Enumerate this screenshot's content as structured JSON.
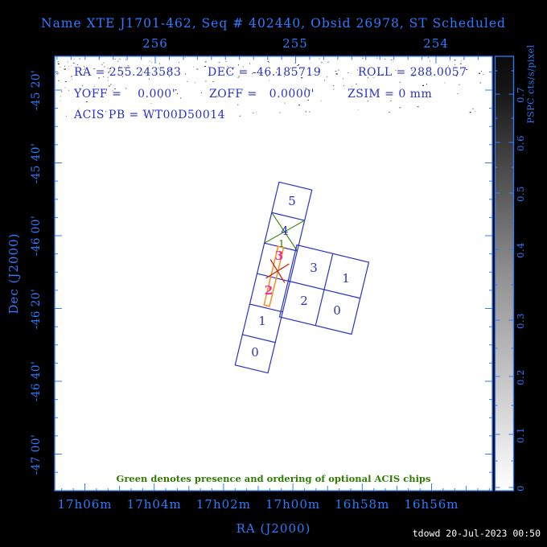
{
  "title": "Name XTE J1701-462, Seq # 402440, Obsid 26978, ST Scheduled",
  "pointing": {
    "ra": "RA = 255.243583",
    "dec": "DEC = -46.185719",
    "roll": "ROLL = 288.0057",
    "yoff": "YOFF =    0.000'",
    "zoff": "ZOFF =   0.0000'",
    "zsim": "ZSIM = 0 mm",
    "acis_pb": "ACIS PB = WT00D50014"
  },
  "axes": {
    "top_ticks": [
      "256",
      "255",
      "254"
    ],
    "bottom_label": "RA (J2000)",
    "bottom_ticks": [
      "17h06m",
      "17h04m",
      "17h02m",
      "17h00m",
      "16h58m",
      "16h56m"
    ],
    "left_label": "Dec (J2000)",
    "left_ticks": [
      "-45 20'",
      "-45 40'",
      "-46 00'",
      "-46 20'",
      "-46 40'",
      "-47 00'"
    ]
  },
  "colorbar": {
    "label": "PSPC cts/s/pixel",
    "ticks": [
      "0.7",
      "0.6",
      "0.5",
      "0.4",
      "0.3",
      "0.2",
      "0.1",
      "0"
    ]
  },
  "acis": {
    "s_array_labels": [
      "5",
      "4",
      "3",
      "2",
      "1",
      "0"
    ],
    "optional_chip_order": "1",
    "i_array_labels": [
      "3",
      "1",
      "2",
      "0"
    ]
  },
  "footnote": "Green denotes presence and ordering of optional ACIS chips",
  "credit": "tdowd 20-Jul-2023 00:50",
  "colors": {
    "axis_blue": "#2e7bff",
    "plot_blue": "#2832c8",
    "green": "#2e7d00",
    "magenta": "#f03090",
    "red": "#cc2810",
    "orange": "#ff8c1a"
  }
}
